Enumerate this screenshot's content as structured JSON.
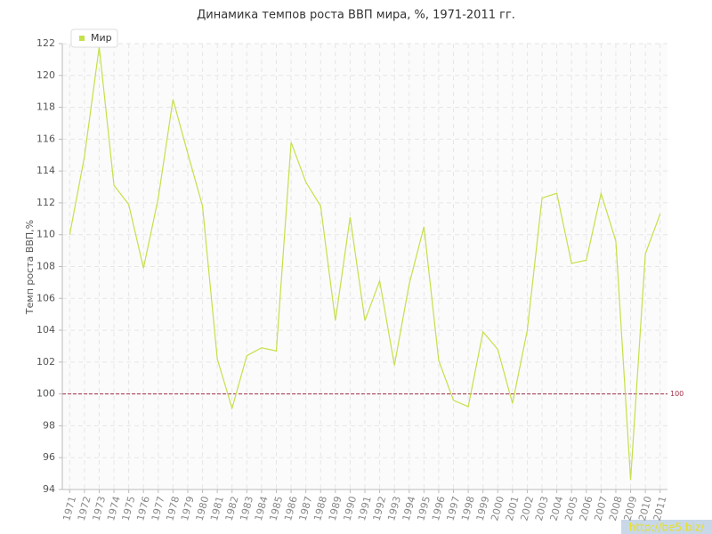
{
  "chart_data": {
    "type": "line",
    "title": "Динамика темпов роста ВВП мира, %, 1971-2011 гг.",
    "y_label": "Темп роста ВВП,%",
    "categories": [
      "1971",
      "1972",
      "1973",
      "1974",
      "1975",
      "1976",
      "1977",
      "1978",
      "1979",
      "1980",
      "1981",
      "1982",
      "1983",
      "1984",
      "1985",
      "1986",
      "1987",
      "1988",
      "1989",
      "1990",
      "1991",
      "1992",
      "1993",
      "1994",
      "1995",
      "1996",
      "1997",
      "1998",
      "1999",
      "2000",
      "2001",
      "2002",
      "2003",
      "2004",
      "2005",
      "2006",
      "2007",
      "2008",
      "2009",
      "2010",
      "2011"
    ],
    "series": [
      {
        "name": "Мир",
        "color": "#c4e04a",
        "values": [
          110.0,
          114.9,
          121.8,
          113.1,
          111.9,
          107.9,
          112.3,
          118.5,
          115.1,
          111.8,
          102.2,
          99.1,
          102.4,
          102.9,
          102.7,
          115.8,
          113.3,
          111.8,
          104.6,
          111.1,
          104.6,
          107.1,
          101.8,
          106.9,
          110.5,
          102.1,
          99.6,
          99.2,
          103.9,
          102.8,
          99.4,
          104.0,
          112.3,
          112.6,
          108.2,
          108.4,
          112.6,
          109.6,
          94.6,
          108.8,
          111.3
        ]
      }
    ],
    "ylim": [
      94,
      122
    ],
    "yticks": [
      94,
      96,
      98,
      100,
      102,
      104,
      106,
      108,
      110,
      112,
      114,
      116,
      118,
      120,
      122
    ],
    "grid": true,
    "legend": "top-left",
    "reference_line": {
      "value": 100,
      "label": "100",
      "color": "#a0304a"
    },
    "watermark": "http://be5.biz/"
  }
}
